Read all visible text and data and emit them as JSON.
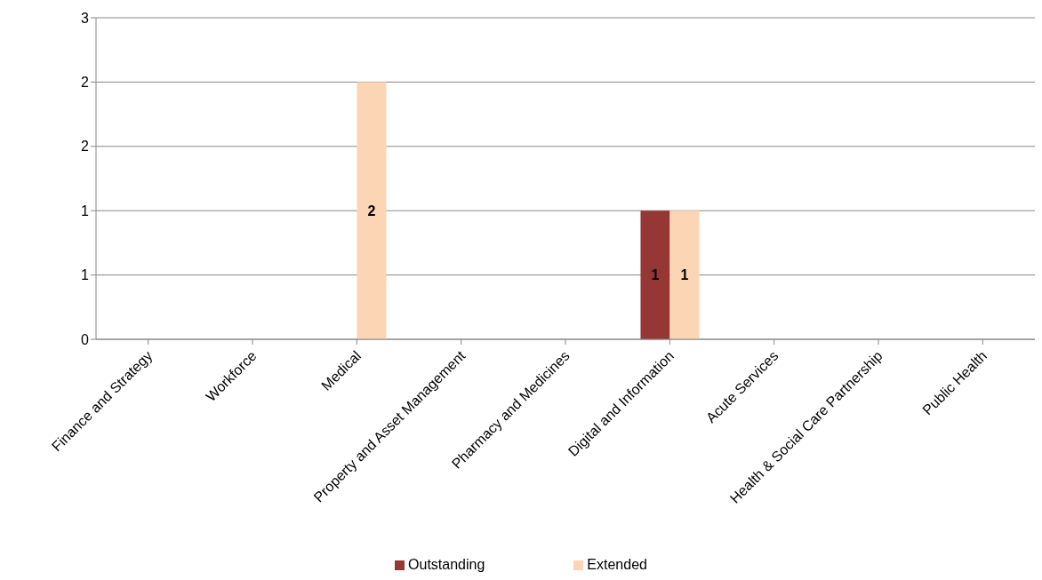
{
  "chart_data": {
    "type": "bar",
    "categories": [
      "Finance and Strategy",
      "Workforce",
      "Medical",
      "Property and Asset Management",
      "Pharmacy and Medicines",
      "Digital and Information",
      "Acute Services",
      "Health & Social Care Partnership",
      "Public Health"
    ],
    "series": [
      {
        "name": "Outstanding",
        "color": "#953735",
        "values": [
          0,
          0,
          0,
          0,
          0,
          1,
          0,
          0,
          0
        ],
        "value_labels": [
          null,
          null,
          null,
          null,
          null,
          "1",
          null,
          null,
          null
        ]
      },
      {
        "name": "Extended",
        "color": "#fcd5b5",
        "values": [
          0,
          0,
          2,
          0,
          0,
          1,
          0,
          0,
          0
        ],
        "value_labels": [
          null,
          null,
          "2",
          null,
          null,
          "1",
          null,
          null,
          null
        ]
      }
    ],
    "ylim": [
      0,
      2.5
    ],
    "yticks": [
      0,
      {
        "value": 0.5,
        "label": "1"
      },
      {
        "value": 1,
        "label": "1"
      },
      {
        "value": 1.5,
        "label": "2"
      },
      {
        "value": 2,
        "label": "2"
      },
      {
        "value": 2.5,
        "label": "3"
      }
    ],
    "grid": "y",
    "legend": "bottom"
  }
}
